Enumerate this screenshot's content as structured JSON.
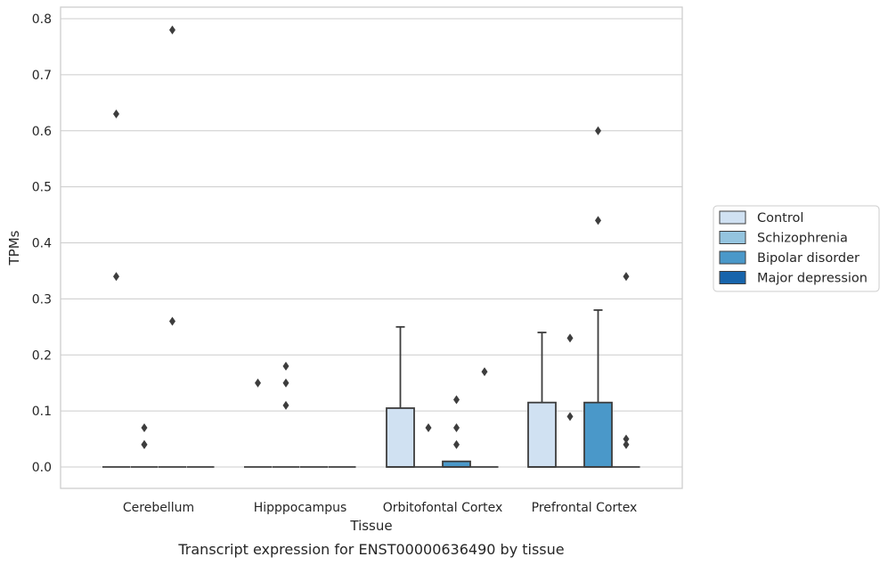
{
  "chart_data": {
    "type": "box",
    "caption": "Transcript expression for ENST00000636490 by tissue",
    "xlabel": "Tissue",
    "ylabel": "TPMs",
    "ylim": [
      -0.04,
      0.82
    ],
    "yticks": [
      0.0,
      0.1,
      0.2,
      0.3,
      0.4,
      0.5,
      0.6,
      0.7,
      0.8
    ],
    "ytick_labels": [
      "0.0",
      "0.1",
      "0.2",
      "0.3",
      "0.4",
      "0.5",
      "0.6",
      "0.7",
      "0.8"
    ],
    "grid": true,
    "legend_position": "right",
    "categories": [
      "Cerebellum",
      "Hipppocampus",
      "Orbitofontal Cortex",
      "Prefrontal Cortex"
    ],
    "series": [
      {
        "name": "Control",
        "color": "#d0e1f2",
        "boxes": [
          {
            "q1": 0,
            "median": 0,
            "q3": 0,
            "whisker_low": 0,
            "whisker_high": 0,
            "outliers": [
              0.63,
              0.34
            ]
          },
          {
            "q1": 0,
            "median": 0,
            "q3": 0,
            "whisker_low": 0,
            "whisker_high": 0,
            "outliers": [
              0.15
            ]
          },
          {
            "q1": 0,
            "median": 0,
            "q3": 0.105,
            "whisker_low": 0,
            "whisker_high": 0.25,
            "outliers": []
          },
          {
            "q1": 0,
            "median": 0,
            "q3": 0.115,
            "whisker_low": 0,
            "whisker_high": 0.24,
            "outliers": []
          }
        ]
      },
      {
        "name": "Schizophrenia",
        "color": "#94c4df",
        "boxes": [
          {
            "q1": 0,
            "median": 0,
            "q3": 0,
            "whisker_low": 0,
            "whisker_high": 0,
            "outliers": [
              0.07,
              0.04,
              0.04
            ]
          },
          {
            "q1": 0,
            "median": 0,
            "q3": 0,
            "whisker_low": 0,
            "whisker_high": 0,
            "outliers": [
              0.18,
              0.15,
              0.11
            ]
          },
          {
            "q1": 0,
            "median": 0,
            "q3": 0,
            "whisker_low": 0,
            "whisker_high": 0,
            "outliers": [
              0.07
            ]
          },
          {
            "q1": 0,
            "median": 0,
            "q3": 0,
            "whisker_low": 0,
            "whisker_high": 0,
            "outliers": [
              0.23,
              0.09
            ]
          }
        ]
      },
      {
        "name": "Bipolar disorder",
        "color": "#4a98c9",
        "boxes": [
          {
            "q1": 0,
            "median": 0,
            "q3": 0,
            "whisker_low": 0,
            "whisker_high": 0,
            "outliers": [
              0.78,
              0.26
            ]
          },
          {
            "q1": 0,
            "median": 0,
            "q3": 0,
            "whisker_low": 0,
            "whisker_high": 0,
            "outliers": []
          },
          {
            "q1": 0,
            "median": 0,
            "q3": 0.01,
            "whisker_low": 0,
            "whisker_high": 0.01,
            "outliers": [
              0.12,
              0.07,
              0.04
            ]
          },
          {
            "q1": 0,
            "median": 0,
            "q3": 0.115,
            "whisker_low": 0,
            "whisker_high": 0.28,
            "outliers": [
              0.6,
              0.44
            ]
          }
        ]
      },
      {
        "name": "Major depression",
        "color": "#1764ab",
        "boxes": [
          {
            "q1": 0,
            "median": 0,
            "q3": 0,
            "whisker_low": 0,
            "whisker_high": 0,
            "outliers": []
          },
          {
            "q1": 0,
            "median": 0,
            "q3": 0,
            "whisker_low": 0,
            "whisker_high": 0,
            "outliers": []
          },
          {
            "q1": 0,
            "median": 0,
            "q3": 0,
            "whisker_low": 0,
            "whisker_high": 0,
            "outliers": [
              0.17
            ]
          },
          {
            "q1": 0,
            "median": 0,
            "q3": 0,
            "whisker_low": 0,
            "whisker_high": 0,
            "outliers": [
              0.34,
              0.05,
              0.04
            ]
          }
        ]
      }
    ]
  }
}
